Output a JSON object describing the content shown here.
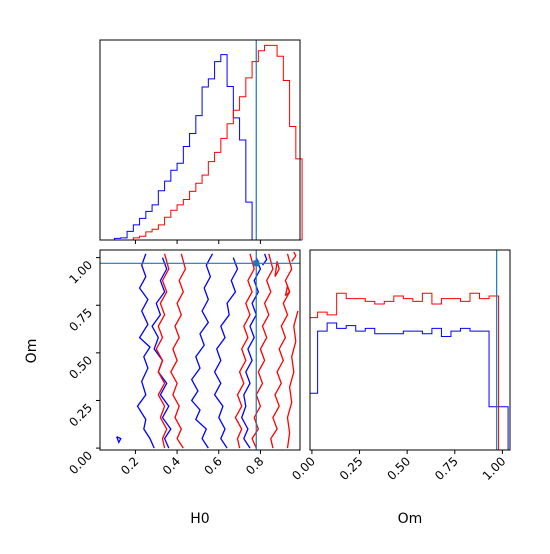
{
  "chart_data": {
    "type": "corner",
    "parameters": [
      "H0",
      "Om"
    ],
    "truth": {
      "H0": 0.78,
      "Om": 0.97
    },
    "colors": {
      "posterior_a": "#0000ff",
      "posterior_b": "#ff0000",
      "truth": "#1f77b4"
    },
    "ranges": {
      "H0": [
        0.03,
        0.99
      ],
      "Om": [
        -0.01,
        1.04
      ]
    },
    "ticks": {
      "H0": [
        "0.2",
        "0.4",
        "0.6",
        "0.8"
      ],
      "Om": [
        "0.00",
        "0.25",
        "0.50",
        "0.75",
        "1.00"
      ]
    },
    "H0_hist": {
      "bins": [
        0.1,
        0.13,
        0.16,
        0.19,
        0.22,
        0.25,
        0.28,
        0.31,
        0.34,
        0.37,
        0.4,
        0.43,
        0.46,
        0.49,
        0.52,
        0.55,
        0.58,
        0.61,
        0.64,
        0.67,
        0.7,
        0.73,
        0.76,
        0.79,
        0.82,
        0.85,
        0.88,
        0.91,
        0.94,
        0.97,
        1.0
      ],
      "series": [
        {
          "name": "",
          "color": "#0000ff",
          "values": [
            0.3,
            0.4,
            1.6,
            2.8,
            4.0,
            5.3,
            6.5,
            9.1,
            10.9,
            12.9,
            14.2,
            17.3,
            19.7,
            23.0,
            28.3,
            29.8,
            33.0,
            34.3,
            28.4,
            22.6,
            18.5,
            7.0,
            0,
            0,
            0,
            0,
            0,
            0,
            0,
            0
          ]
        },
        {
          "name": "",
          "color": "#ff0000",
          "values": [
            0,
            0,
            0,
            0.4,
            0.7,
            1.5,
            2.0,
            2.8,
            4.2,
            5.5,
            6.5,
            7.5,
            9.0,
            10.5,
            12.0,
            14.5,
            16.2,
            18.8,
            21.5,
            24.0,
            26.5,
            30.0,
            33.0,
            35.0,
            36.0,
            36.0,
            34.0,
            29.5,
            21.0,
            15.0
          ]
        }
      ]
    },
    "Om_hist": {
      "bins": [
        -0.02,
        0.03,
        0.08,
        0.13,
        0.18,
        0.23,
        0.28,
        0.33,
        0.38,
        0.43,
        0.48,
        0.53,
        0.58,
        0.63,
        0.68,
        0.73,
        0.78,
        0.83,
        0.88,
        0.93,
        0.98,
        1.03
      ],
      "series": [
        {
          "name": "",
          "color": "#0000ff",
          "values": [
            10.5,
            22.0,
            23.5,
            22.5,
            23.0,
            22.0,
            22.5,
            21.5,
            21.5,
            21.5,
            22.0,
            22.0,
            21.5,
            22.5,
            21.0,
            22.0,
            22.5,
            22.0,
            22.0,
            8.0,
            8.0
          ]
        },
        {
          "name": "",
          "color": "#ff0000",
          "values": [
            24.5,
            25.5,
            25.0,
            29.0,
            28.0,
            28.0,
            27.5,
            27.0,
            27.5,
            28.5,
            28.0,
            27.5,
            29.0,
            27.0,
            28.0,
            28.0,
            27.5,
            29.0,
            28.0,
            28.5,
            0
          ]
        }
      ]
    },
    "contours": [
      {
        "color": "#0000ff",
        "lines": [
          [
            [
              0.29,
              0.0
            ],
            [
              0.27,
              0.05
            ],
            [
              0.24,
              0.1
            ],
            [
              0.25,
              0.15
            ],
            [
              0.21,
              0.22
            ],
            [
              0.25,
              0.28
            ],
            [
              0.23,
              0.35
            ],
            [
              0.26,
              0.42
            ],
            [
              0.24,
              0.48
            ],
            [
              0.27,
              0.53
            ],
            [
              0.22,
              0.58
            ],
            [
              0.26,
              0.65
            ],
            [
              0.23,
              0.72
            ],
            [
              0.26,
              0.78
            ],
            [
              0.22,
              0.84
            ],
            [
              0.25,
              0.9
            ],
            [
              0.23,
              0.96
            ],
            [
              0.25,
              1.02
            ]
          ],
          [
            [
              0.36,
              0.0
            ],
            [
              0.34,
              0.05
            ],
            [
              0.37,
              0.1
            ],
            [
              0.33,
              0.16
            ],
            [
              0.36,
              0.22
            ],
            [
              0.32,
              0.28
            ],
            [
              0.35,
              0.34
            ],
            [
              0.31,
              0.4
            ],
            [
              0.33,
              0.46
            ],
            [
              0.29,
              0.52
            ],
            [
              0.31,
              0.58
            ],
            [
              0.28,
              0.64
            ],
            [
              0.32,
              0.7
            ],
            [
              0.3,
              0.76
            ],
            [
              0.34,
              0.82
            ],
            [
              0.32,
              0.88
            ],
            [
              0.35,
              0.94
            ],
            [
              0.33,
              1.0
            ]
          ],
          [
            [
              0.55,
              0.0
            ],
            [
              0.52,
              0.05
            ],
            [
              0.54,
              0.1
            ],
            [
              0.49,
              0.15
            ],
            [
              0.51,
              0.2
            ],
            [
              0.47,
              0.25
            ],
            [
              0.5,
              0.3
            ],
            [
              0.47,
              0.36
            ],
            [
              0.51,
              0.42
            ],
            [
              0.49,
              0.48
            ],
            [
              0.53,
              0.54
            ],
            [
              0.51,
              0.6
            ],
            [
              0.55,
              0.66
            ],
            [
              0.52,
              0.72
            ],
            [
              0.55,
              0.78
            ],
            [
              0.53,
              0.84
            ],
            [
              0.56,
              0.9
            ],
            [
              0.54,
              0.96
            ],
            [
              0.57,
              1.02
            ]
          ],
          [
            [
              0.64,
              0.0
            ],
            [
              0.61,
              0.05
            ],
            [
              0.63,
              0.1
            ],
            [
              0.6,
              0.16
            ],
            [
              0.62,
              0.22
            ],
            [
              0.58,
              0.28
            ],
            [
              0.61,
              0.34
            ],
            [
              0.58,
              0.4
            ],
            [
              0.61,
              0.46
            ],
            [
              0.59,
              0.52
            ],
            [
              0.63,
              0.58
            ],
            [
              0.61,
              0.64
            ],
            [
              0.65,
              0.7
            ],
            [
              0.64,
              0.76
            ],
            [
              0.68,
              0.82
            ],
            [
              0.66,
              0.88
            ],
            [
              0.69,
              0.94
            ],
            [
              0.67,
              1.0
            ]
          ],
          [
            [
              0.75,
              0.0
            ],
            [
              0.72,
              0.05
            ],
            [
              0.74,
              0.1
            ],
            [
              0.71,
              0.16
            ],
            [
              0.73,
              0.22
            ],
            [
              0.72,
              0.28
            ],
            [
              0.75,
              0.34
            ],
            [
              0.73,
              0.4
            ],
            [
              0.76,
              0.46
            ],
            [
              0.74,
              0.52
            ],
            [
              0.77,
              0.58
            ],
            [
              0.75,
              0.64
            ],
            [
              0.78,
              0.7
            ],
            [
              0.76,
              0.76
            ],
            [
              0.79,
              0.82
            ],
            [
              0.77,
              0.88
            ],
            [
              0.8,
              0.94
            ],
            [
              0.78,
              1.0
            ]
          ],
          [
            [
              0.81,
              0.96
            ],
            [
              0.83,
              0.99
            ],
            [
              0.82,
              1.02
            ]
          ],
          [
            [
              0.11,
              0.06
            ],
            [
              0.13,
              0.05
            ],
            [
              0.12,
              0.03
            ],
            [
              0.11,
              0.06
            ]
          ]
        ]
      },
      {
        "color": "#ff0000",
        "lines": [
          [
            [
              0.34,
              0.0
            ],
            [
              0.33,
              0.05
            ],
            [
              0.35,
              0.1
            ],
            [
              0.32,
              0.16
            ],
            [
              0.34,
              0.22
            ],
            [
              0.31,
              0.28
            ],
            [
              0.34,
              0.34
            ],
            [
              0.31,
              0.4
            ],
            [
              0.33,
              0.46
            ],
            [
              0.3,
              0.52
            ],
            [
              0.33,
              0.58
            ],
            [
              0.31,
              0.64
            ],
            [
              0.34,
              0.7
            ],
            [
              0.32,
              0.76
            ],
            [
              0.35,
              0.82
            ],
            [
              0.33,
              0.88
            ],
            [
              0.36,
              0.94
            ],
            [
              0.34,
              1.02
            ]
          ],
          [
            [
              0.43,
              0.0
            ],
            [
              0.4,
              0.05
            ],
            [
              0.42,
              0.1
            ],
            [
              0.39,
              0.16
            ],
            [
              0.41,
              0.22
            ],
            [
              0.38,
              0.28
            ],
            [
              0.4,
              0.34
            ],
            [
              0.37,
              0.4
            ],
            [
              0.4,
              0.46
            ],
            [
              0.38,
              0.52
            ],
            [
              0.41,
              0.58
            ],
            [
              0.39,
              0.64
            ],
            [
              0.42,
              0.7
            ],
            [
              0.4,
              0.76
            ],
            [
              0.43,
              0.82
            ],
            [
              0.41,
              0.88
            ],
            [
              0.44,
              0.94
            ],
            [
              0.42,
              1.02
            ]
          ],
          [
            [
              0.7,
              0.0
            ],
            [
              0.69,
              0.05
            ],
            [
              0.71,
              0.1
            ],
            [
              0.68,
              0.16
            ],
            [
              0.71,
              0.22
            ],
            [
              0.69,
              0.28
            ],
            [
              0.72,
              0.34
            ],
            [
              0.7,
              0.4
            ],
            [
              0.73,
              0.46
            ],
            [
              0.71,
              0.52
            ],
            [
              0.74,
              0.58
            ],
            [
              0.72,
              0.64
            ],
            [
              0.75,
              0.7
            ],
            [
              0.73,
              0.76
            ],
            [
              0.76,
              0.82
            ],
            [
              0.74,
              0.88
            ],
            [
              0.77,
              0.94
            ],
            [
              0.75,
              1.02
            ]
          ],
          [
            [
              0.78,
              0.0
            ],
            [
              0.76,
              0.05
            ],
            [
              0.79,
              0.1
            ],
            [
              0.77,
              0.16
            ],
            [
              0.8,
              0.22
            ],
            [
              0.78,
              0.28
            ],
            [
              0.81,
              0.34
            ],
            [
              0.79,
              0.4
            ],
            [
              0.82,
              0.46
            ],
            [
              0.8,
              0.52
            ],
            [
              0.83,
              0.58
            ],
            [
              0.81,
              0.64
            ],
            [
              0.84,
              0.7
            ],
            [
              0.82,
              0.76
            ],
            [
              0.85,
              0.82
            ],
            [
              0.83,
              0.88
            ],
            [
              0.86,
              0.94
            ],
            [
              0.84,
              1.02
            ]
          ],
          [
            [
              0.86,
              0.0
            ],
            [
              0.85,
              0.05
            ],
            [
              0.88,
              0.1
            ],
            [
              0.86,
              0.16
            ],
            [
              0.89,
              0.22
            ],
            [
              0.87,
              0.28
            ],
            [
              0.9,
              0.34
            ],
            [
              0.88,
              0.4
            ],
            [
              0.91,
              0.46
            ],
            [
              0.89,
              0.52
            ],
            [
              0.92,
              0.58
            ],
            [
              0.9,
              0.64
            ],
            [
              0.93,
              0.7
            ],
            [
              0.91,
              0.76
            ],
            [
              0.94,
              0.82
            ],
            [
              0.92,
              0.88
            ],
            [
              0.95,
              0.94
            ],
            [
              0.93,
              1.02
            ]
          ],
          [
            [
              0.93,
              0.0
            ],
            [
              0.94,
              0.08
            ],
            [
              0.93,
              0.16
            ],
            [
              0.95,
              0.24
            ],
            [
              0.94,
              0.32
            ],
            [
              0.96,
              0.4
            ],
            [
              0.95,
              0.48
            ],
            [
              0.97,
              0.56
            ],
            [
              0.96,
              0.64
            ],
            [
              0.98,
              0.72
            ]
          ],
          [
            [
              0.87,
              0.9
            ],
            [
              0.89,
              0.94
            ],
            [
              0.88,
              0.98
            ],
            [
              0.87,
              0.9
            ]
          ],
          [
            [
              0.92,
              0.8
            ],
            [
              0.94,
              0.82
            ],
            [
              0.93,
              0.85
            ],
            [
              0.92,
              0.8
            ]
          ],
          [
            [
              0.95,
              0.98
            ],
            [
              0.97,
              1.01
            ],
            [
              0.96,
              1.03
            ]
          ]
        ]
      }
    ],
    "xlabel_h0": "H0",
    "xlabel_om": "Om",
    "ylabel_om": "Om"
  }
}
